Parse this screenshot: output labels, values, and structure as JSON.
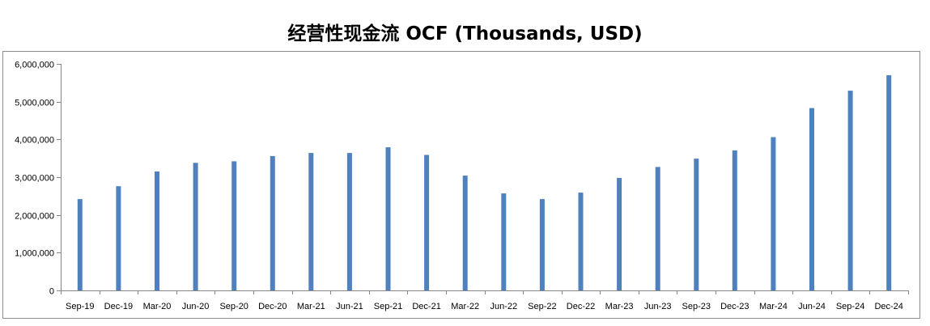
{
  "chart_data": {
    "type": "bar",
    "title": "经营性现金流 OCF (Thousands, USD)",
    "xlabel": "",
    "ylabel": "",
    "ylim": [
      0,
      6000000
    ],
    "y_ticks": [
      "0",
      "1,000,000",
      "2,000,000",
      "3,000,000",
      "4,000,000",
      "5,000,000",
      "6,000,000"
    ],
    "y_tick_values": [
      0,
      1000000,
      2000000,
      3000000,
      4000000,
      5000000,
      6000000
    ],
    "categories": [
      "Sep-19",
      "Dec-19",
      "Mar-20",
      "Jun-20",
      "Sep-20",
      "Dec-20",
      "Mar-21",
      "Jun-21",
      "Sep-21",
      "Dec-21",
      "Mar-22",
      "Jun-22",
      "Sep-22",
      "Dec-22",
      "Mar-23",
      "Jun-23",
      "Sep-23",
      "Dec-23",
      "Mar-24",
      "Jun-24",
      "Sep-24",
      "Dec-24"
    ],
    "values": [
      2420000,
      2760000,
      3150000,
      3380000,
      3420000,
      3560000,
      3640000,
      3640000,
      3790000,
      3590000,
      3040000,
      2570000,
      2420000,
      2590000,
      2980000,
      3270000,
      3490000,
      3710000,
      4060000,
      4830000,
      5290000,
      5700000
    ],
    "bar_color": "#4F81BD",
    "grid": false,
    "legend": false
  }
}
